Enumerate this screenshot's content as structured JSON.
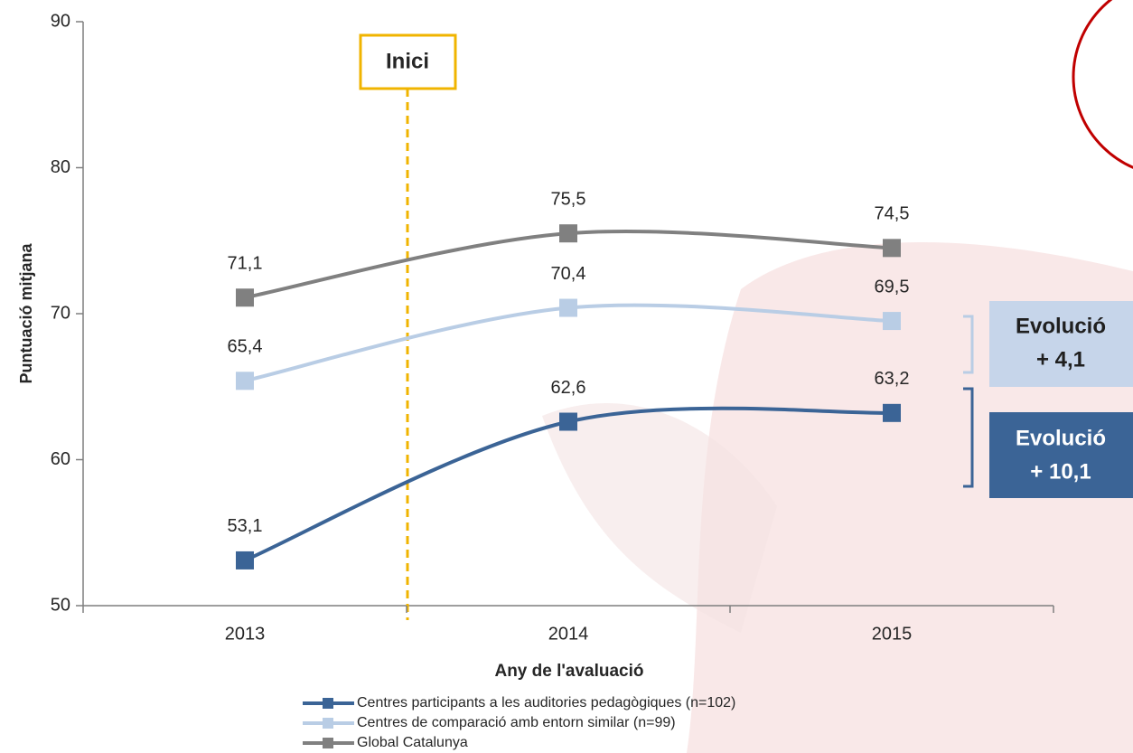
{
  "chart_data": {
    "type": "line",
    "categories": [
      "2013",
      "2014",
      "2015"
    ],
    "series": [
      {
        "name": "Centres participants a les auditories pedagògiques (n=102)",
        "color": "#3b6496",
        "values": [
          53.1,
          62.6,
          63.2
        ],
        "value_labels": [
          "53,1",
          "62,6",
          "63,2"
        ]
      },
      {
        "name": "Centres de comparació amb entorn similar (n=99)",
        "color": "#b9cde5",
        "values": [
          65.4,
          70.4,
          69.5
        ],
        "value_labels": [
          "65,4",
          "70,4",
          "69,5"
        ]
      },
      {
        "name": "Global Catalunya",
        "color": "#808080",
        "values": [
          71.1,
          75.5,
          74.5
        ],
        "value_labels": [
          "71,1",
          "75,5",
          "74,5"
        ]
      }
    ],
    "ylim": [
      50,
      90
    ],
    "yticks": [
      50,
      60,
      70,
      80,
      90
    ],
    "y_label": "Puntuació mitjana",
    "x_label": "Any de l'avaluació",
    "start_label": "Inici",
    "evolution_labels": [
      [
        "Evolució",
        "+ 4,1"
      ],
      [
        "Evolució",
        "+ 10,1"
      ]
    ],
    "smooth": true
  }
}
